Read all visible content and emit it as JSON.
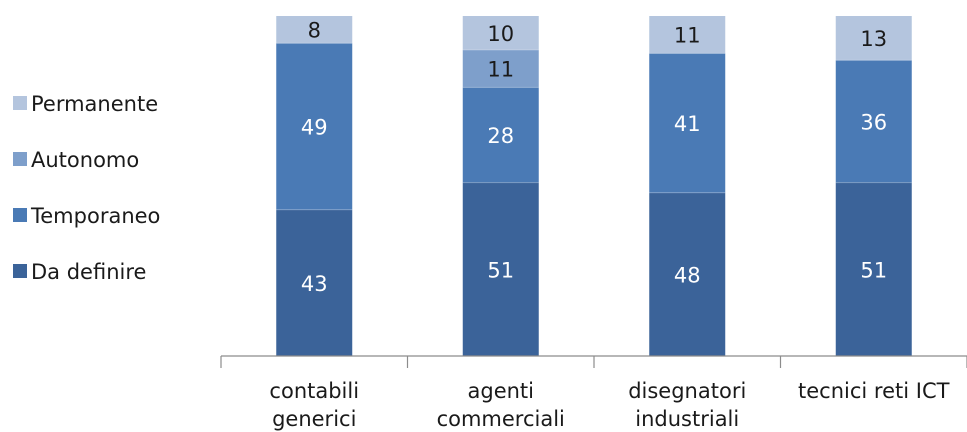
{
  "chart_data": {
    "type": "bar",
    "stacked": true,
    "categories": [
      [
        "contabili",
        "generici"
      ],
      [
        "agenti",
        "commerciali"
      ],
      [
        "disegnatori",
        "industriali"
      ],
      [
        "tecnici reti ICT"
      ]
    ],
    "series": [
      {
        "name": "Da definire",
        "color": "#3b6399",
        "label_color": "#ffffff",
        "values": [
          43,
          51,
          48,
          51
        ]
      },
      {
        "name": "Temporaneo",
        "color": "#4a7ab5",
        "label_color": "#ffffff",
        "values": [
          49,
          28,
          41,
          36
        ]
      },
      {
        "name": "Autonomo",
        "color": "#7e9fcb",
        "label_color": "#1a1a1a",
        "values": [
          null,
          11,
          null,
          null
        ]
      },
      {
        "name": "Permanente",
        "color": "#b4c5de",
        "label_color": "#1a1a1a",
        "values": [
          8,
          10,
          11,
          13
        ]
      }
    ],
    "ylim": [
      0,
      100
    ],
    "legend_placement": "left",
    "grid": false
  }
}
